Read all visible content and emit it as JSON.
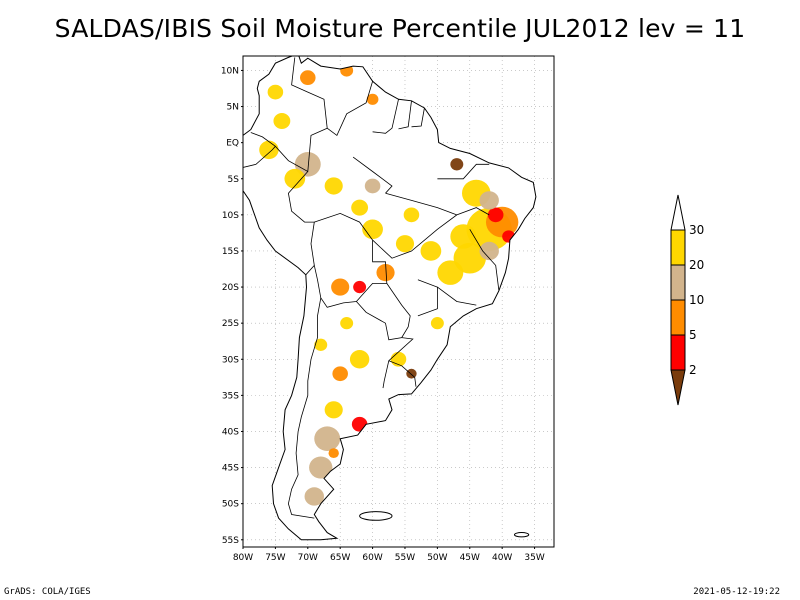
{
  "title": "SALDAS/IBIS Soil Moisture Percentile JUL2012 lev = 11",
  "footer": {
    "left": "GrADS: COLA/IGES",
    "right": "2021-05-12-19:22"
  },
  "map": {
    "lon_range": [
      -80,
      -32
    ],
    "lat_range": [
      -56,
      12
    ],
    "lat_ticks": [
      {
        "v": 10,
        "label": "10N"
      },
      {
        "v": 5,
        "label": "5N"
      },
      {
        "v": 0,
        "label": "EQ"
      },
      {
        "v": -5,
        "label": "5S"
      },
      {
        "v": -10,
        "label": "10S"
      },
      {
        "v": -15,
        "label": "15S"
      },
      {
        "v": -20,
        "label": "20S"
      },
      {
        "v": -25,
        "label": "25S"
      },
      {
        "v": -30,
        "label": "30S"
      },
      {
        "v": -35,
        "label": "35S"
      },
      {
        "v": -40,
        "label": "40S"
      },
      {
        "v": -45,
        "label": "45S"
      },
      {
        "v": -50,
        "label": "50S"
      },
      {
        "v": -55,
        "label": "55S"
      }
    ],
    "lon_ticks": [
      {
        "v": -80,
        "label": "80W"
      },
      {
        "v": -75,
        "label": "75W"
      },
      {
        "v": -70,
        "label": "70W"
      },
      {
        "v": -65,
        "label": "65W"
      },
      {
        "v": -60,
        "label": "60W"
      },
      {
        "v": -55,
        "label": "55W"
      },
      {
        "v": -50,
        "label": "50W"
      },
      {
        "v": -45,
        "label": "45W"
      },
      {
        "v": -40,
        "label": "40W"
      },
      {
        "v": -35,
        "label": "35W"
      }
    ],
    "grid": true
  },
  "legend": {
    "orientation": "vertical",
    "bins": [
      {
        "color": "#7a3c0c",
        "label": "2"
      },
      {
        "color": "#ff0000",
        "label": "5"
      },
      {
        "color": "#ff8c00",
        "label": "10"
      },
      {
        "color": "#d2b48c",
        "label": "20"
      },
      {
        "color": "#ffd700",
        "label": "30"
      },
      {
        "color": "#ffffff",
        "label": ""
      }
    ]
  },
  "chart_data": {
    "type": "heatmap",
    "title": "SALDAS/IBIS Soil Moisture Percentile JUL2012 lev = 11",
    "variable_levels": [
      2,
      5,
      10,
      20,
      30
    ],
    "patches": [
      {
        "lon": -42,
        "lat": -12,
        "r": 3.5,
        "c": "#ffd700"
      },
      {
        "lon": -40,
        "lat": -11,
        "r": 2.5,
        "c": "#ff8c00"
      },
      {
        "lon": -41,
        "lat": -10,
        "r": 1.2,
        "c": "#ff0000"
      },
      {
        "lon": -39,
        "lat": -13,
        "r": 1.0,
        "c": "#ff0000"
      },
      {
        "lon": -44,
        "lat": -7,
        "r": 2.2,
        "c": "#ffd700"
      },
      {
        "lon": -42,
        "lat": -8,
        "r": 1.5,
        "c": "#d2b48c"
      },
      {
        "lon": -47,
        "lat": -3,
        "r": 1.0,
        "c": "#7a3c0c"
      },
      {
        "lon": -46,
        "lat": -13,
        "r": 2.0,
        "c": "#ffd700"
      },
      {
        "lon": -45,
        "lat": -16,
        "r": 2.5,
        "c": "#ffd700"
      },
      {
        "lon": -42,
        "lat": -15,
        "r": 1.5,
        "c": "#d2b48c"
      },
      {
        "lon": -48,
        "lat": -18,
        "r": 2.0,
        "c": "#ffd700"
      },
      {
        "lon": -51,
        "lat": -15,
        "r": 1.6,
        "c": "#ffd700"
      },
      {
        "lon": -55,
        "lat": -14,
        "r": 1.4,
        "c": "#ffd700"
      },
      {
        "lon": -60,
        "lat": -12,
        "r": 1.6,
        "c": "#ffd700"
      },
      {
        "lon": -62,
        "lat": -9,
        "r": 1.3,
        "c": "#ffd700"
      },
      {
        "lon": -65,
        "lat": -20,
        "r": 1.4,
        "c": "#ff8c00"
      },
      {
        "lon": -62,
        "lat": -20,
        "r": 1.0,
        "c": "#ff0000"
      },
      {
        "lon": -58,
        "lat": -18,
        "r": 1.4,
        "c": "#ff8c00"
      },
      {
        "lon": -70,
        "lat": -3,
        "r": 2.0,
        "c": "#d2b48c"
      },
      {
        "lon": -72,
        "lat": -5,
        "r": 1.6,
        "c": "#ffd700"
      },
      {
        "lon": -76,
        "lat": -1,
        "r": 1.5,
        "c": "#ffd700"
      },
      {
        "lon": -74,
        "lat": 3,
        "r": 1.3,
        "c": "#ffd700"
      },
      {
        "lon": -75,
        "lat": 7,
        "r": 1.2,
        "c": "#ffd700"
      },
      {
        "lon": -70,
        "lat": 9,
        "r": 1.2,
        "c": "#ff8c00"
      },
      {
        "lon": -64,
        "lat": 10,
        "r": 1.0,
        "c": "#ff8c00"
      },
      {
        "lon": -60,
        "lat": 6,
        "r": 0.9,
        "c": "#ff8c00"
      },
      {
        "lon": -66,
        "lat": -6,
        "r": 1.4,
        "c": "#ffd700"
      },
      {
        "lon": -60,
        "lat": -6,
        "r": 1.2,
        "c": "#d2b48c"
      },
      {
        "lon": -54,
        "lat": -10,
        "r": 1.2,
        "c": "#ffd700"
      },
      {
        "lon": -50,
        "lat": -25,
        "r": 1.0,
        "c": "#ffd700"
      },
      {
        "lon": -56,
        "lat": -30,
        "r": 1.2,
        "c": "#ffd700"
      },
      {
        "lon": -62,
        "lat": -30,
        "r": 1.5,
        "c": "#ffd700"
      },
      {
        "lon": -65,
        "lat": -32,
        "r": 1.2,
        "c": "#ff8c00"
      },
      {
        "lon": -66,
        "lat": -37,
        "r": 1.4,
        "c": "#ffd700"
      },
      {
        "lon": -62,
        "lat": -39,
        "r": 1.2,
        "c": "#ff0000"
      },
      {
        "lon": -67,
        "lat": -41,
        "r": 2.0,
        "c": "#d2b48c"
      },
      {
        "lon": -68,
        "lat": -45,
        "r": 1.8,
        "c": "#d2b48c"
      },
      {
        "lon": -69,
        "lat": -49,
        "r": 1.5,
        "c": "#d2b48c"
      },
      {
        "lon": -66,
        "lat": -43,
        "r": 0.8,
        "c": "#ff8c00"
      },
      {
        "lon": -54,
        "lat": -32,
        "r": 0.8,
        "c": "#7a3c0c"
      },
      {
        "lon": -68,
        "lat": -28,
        "r": 1.0,
        "c": "#ffd700"
      },
      {
        "lon": -64,
        "lat": -25,
        "r": 1.0,
        "c": "#ffd700"
      }
    ]
  }
}
